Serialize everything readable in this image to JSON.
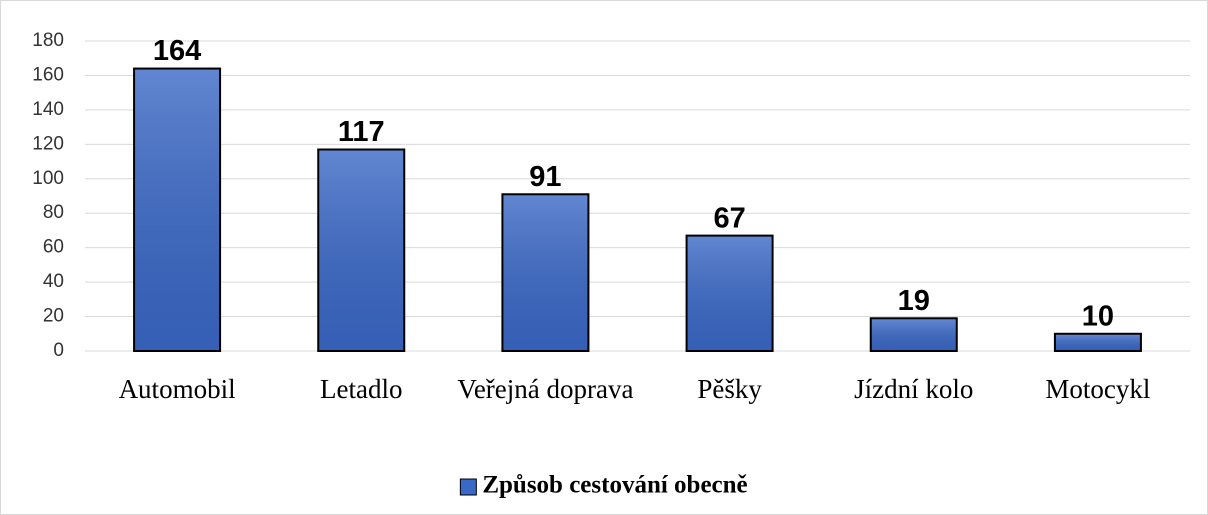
{
  "chart_data": {
    "type": "bar",
    "categories": [
      "Automobil",
      "Letadlo",
      "Veřejná doprava",
      "Pěšky",
      "Jízdní kolo",
      "Motocykl"
    ],
    "series": [
      {
        "name": "Způsob cestování obecně",
        "color": "#3a68c6",
        "values": [
          164,
          117,
          91,
          67,
          19,
          10
        ]
      }
    ],
    "ylim": [
      0,
      180
    ],
    "yticks": [
      0,
      20,
      40,
      60,
      80,
      100,
      120,
      140,
      160,
      180
    ],
    "grid": true,
    "legend": "bottom"
  }
}
